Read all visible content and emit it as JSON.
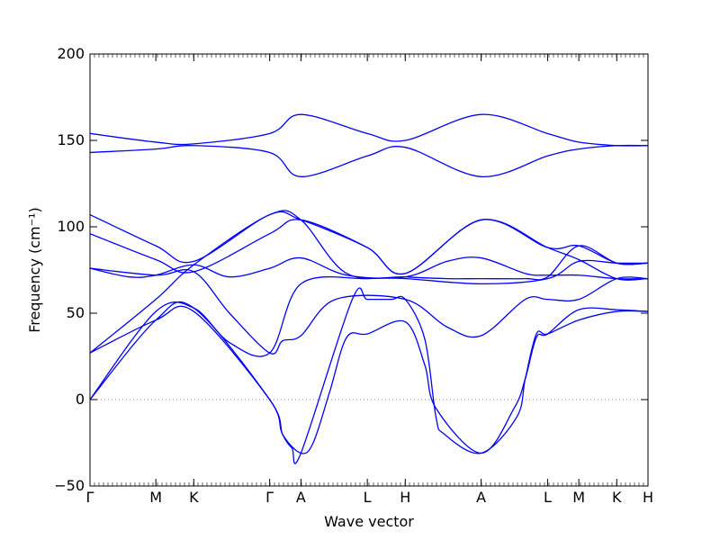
{
  "chart_data": {
    "type": "line",
    "xlabel": "Wave vector",
    "ylabel": "Frequency (cm⁻¹)",
    "ylim": [
      -50,
      200
    ],
    "y_ticks": [
      -50,
      0,
      50,
      100,
      150,
      200
    ],
    "y_tick_labels": [
      "−50",
      "0",
      "50",
      "100",
      "150",
      "200"
    ],
    "zero_line": {
      "y": 0,
      "style": "dotted",
      "color": "#808080"
    },
    "x_ticks": [
      {
        "label": "Γ",
        "x": 0.0
      },
      {
        "label": "M",
        "x": 0.118
      },
      {
        "label": "K",
        "x": 0.186
      },
      {
        "label": "Γ",
        "x": 0.322
      },
      {
        "label": "A",
        "x": 0.378
      },
      {
        "label": "L",
        "x": 0.497
      },
      {
        "label": "H",
        "x": 0.565
      },
      {
        "label": "A",
        "x": 0.701
      },
      {
        "label": "L",
        "x": 0.82
      },
      {
        "label": "M",
        "x": 0.876
      },
      {
        "label": "K",
        "x": 0.944
      },
      {
        "label": "H",
        "x": 1.0
      }
    ],
    "line_color": "#0000ff",
    "series": [
      {
        "x": [
          0,
          0.118,
          0.186,
          0.322,
          0.378,
          0.497,
          0.565,
          0.701,
          0.82,
          0.876,
          0.944,
          1.0
        ],
        "values": [
          154,
          149,
          148,
          154,
          165,
          154,
          150,
          165,
          154,
          149,
          147,
          147
        ]
      },
      {
        "x": [
          0,
          0.118,
          0.186,
          0.322,
          0.378,
          0.497,
          0.565,
          0.701,
          0.82,
          0.876,
          0.944,
          1.0
        ],
        "values": [
          143,
          145,
          147,
          143,
          129,
          141,
          146,
          129,
          141,
          145,
          147,
          147
        ]
      },
      {
        "x": [
          0,
          0.118,
          0.186,
          0.322,
          0.378,
          0.497,
          0.565,
          0.701,
          0.82,
          0.876,
          0.944,
          1.0
        ],
        "values": [
          107,
          89,
          80,
          107,
          104,
          88,
          73,
          104,
          88,
          89,
          79,
          79
        ]
      },
      {
        "x": [
          0,
          0.118,
          0.186,
          0.322,
          0.378,
          0.497,
          0.565,
          0.701,
          0.82,
          0.876,
          0.944,
          1.0
        ],
        "values": [
          96,
          81,
          74,
          96,
          104,
          88,
          73,
          104,
          88,
          81,
          70,
          70
        ]
      },
      {
        "x": [
          0,
          0.07,
          0.118,
          0.186,
          0.25,
          0.322,
          0.378,
          0.46,
          0.565,
          0.64,
          0.701,
          0.78,
          0.82,
          0.876,
          0.944,
          1.0
        ],
        "values": [
          76,
          71,
          72,
          78,
          71,
          76,
          82,
          72,
          71,
          80,
          82,
          73,
          72,
          72,
          70,
          70
        ]
      },
      {
        "x": [
          0,
          0.118,
          0.186,
          0.322,
          0.378,
          0.46,
          0.565,
          0.64,
          0.701,
          0.78,
          0.82,
          0.876,
          0.944,
          1.0
        ],
        "values": [
          27,
          58,
          78,
          107,
          104,
          73,
          71,
          70,
          70,
          70,
          71,
          89,
          79,
          79
        ]
      },
      {
        "x": [
          0,
          0.118,
          0.186,
          0.25,
          0.322,
          0.345,
          0.378,
          0.44,
          0.565,
          0.64,
          0.701,
          0.78,
          0.82,
          0.876,
          0.944,
          1.0
        ],
        "values": [
          76,
          72,
          74,
          50,
          27,
          34,
          37,
          58,
          58,
          42,
          37,
          58,
          58,
          58,
          70,
          70
        ]
      },
      {
        "x": [
          0,
          0.118,
          0.186,
          0.25,
          0.322,
          0.378,
          0.497,
          0.565,
          0.701,
          0.82,
          0.876,
          0.944,
          1.0
        ],
        "values": [
          0,
          51,
          53,
          33,
          27,
          67,
          70,
          70,
          67,
          70,
          80,
          79,
          79
        ]
      },
      {
        "x": [
          0,
          0.118,
          0.186,
          0.322,
          0.345,
          0.362,
          0.378,
          0.47,
          0.497,
          0.54,
          0.565,
          0.6,
          0.62,
          0.635,
          0.701,
          0.765,
          0.78,
          0.8,
          0.82,
          0.876,
          0.944,
          1.0
        ],
        "values": [
          27,
          46,
          51,
          0,
          -20,
          -28,
          -31,
          58,
          58,
          58,
          58,
          35,
          -10,
          -20,
          -31,
          -10,
          12,
          38,
          38,
          46,
          51,
          51
        ]
      },
      {
        "x": [
          0,
          0.118,
          0.186,
          0.322,
          0.345,
          0.378,
          0.4,
          0.43,
          0.46,
          0.497,
          0.565,
          0.6,
          0.62,
          0.701,
          0.76,
          0.78,
          0.8,
          0.82,
          0.876,
          0.944,
          1.0
        ],
        "values": [
          0,
          46,
          53,
          0,
          -20,
          -31,
          -25,
          5,
          36,
          38,
          45,
          20,
          -5,
          -31,
          -5,
          12,
          36,
          38,
          52,
          52,
          51
        ]
      }
    ]
  }
}
